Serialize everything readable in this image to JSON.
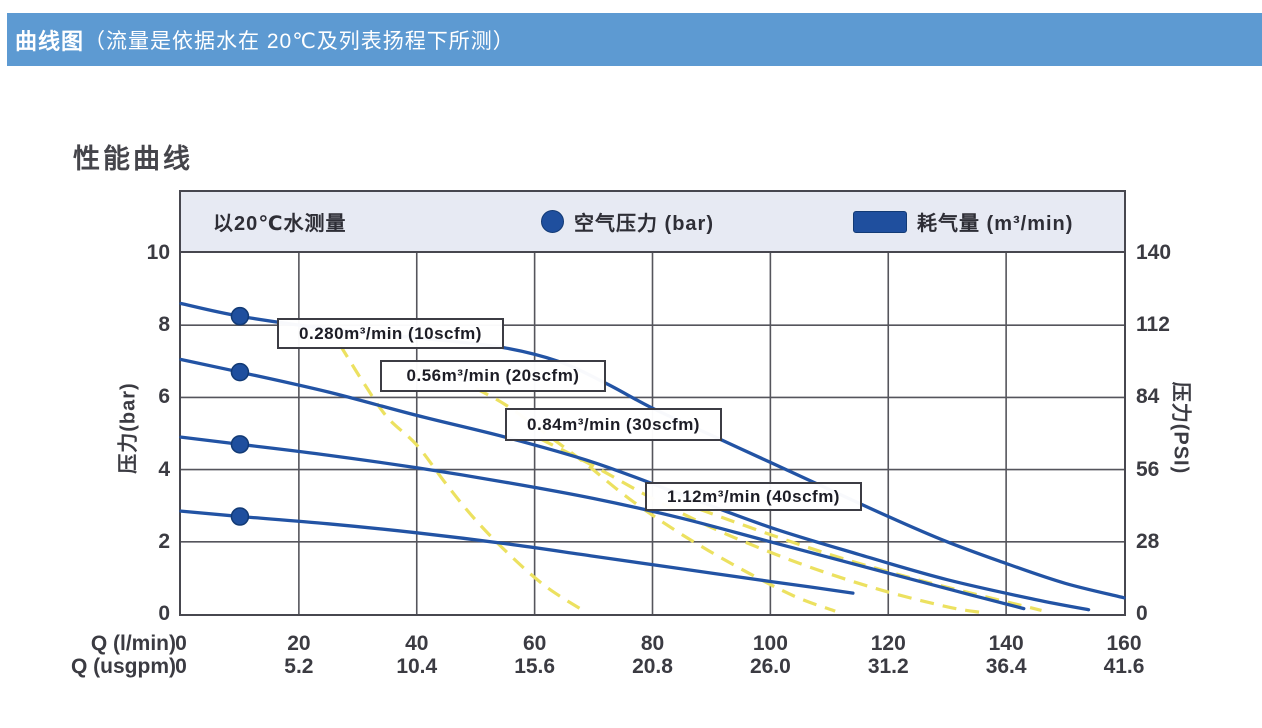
{
  "header": {
    "title_bold": "曲线图",
    "title_rest": "（流量是依据水在 20℃及列表扬程下所测）"
  },
  "section_title": "性能曲线",
  "colors": {
    "header_bar": "#5d9ad2",
    "legend_bg": "#e7eaf3",
    "frame": "#47474f",
    "grid": "#55555c",
    "curve_blue": "#2253a4",
    "dot_blue": "#1f4f9e",
    "dot_border": "#123a75",
    "air_yellow": "#ece160",
    "tick_text": "#3b3b42"
  },
  "chart_data": {
    "type": "line",
    "title": "性能曲线",
    "legend": {
      "note": "以20℃水测量",
      "pressure_label": "空气压力 (bar)",
      "consumption_label": "耗气量 (m³/min)"
    },
    "x_axis": {
      "label_lmin": "Q (l/min)",
      "label_usgpm": "Q (usgpm)",
      "range_lmin": [
        0,
        160
      ],
      "ticks_lmin": [
        "0",
        "20",
        "40",
        "60",
        "80",
        "100",
        "120",
        "140",
        "160"
      ],
      "ticks_usgpm": [
        "0",
        "5.2",
        "10.4",
        "15.6",
        "20.8",
        "26.0",
        "31.2",
        "36.4",
        "41.6"
      ],
      "grid": true
    },
    "y_axis_left": {
      "label": "压力(bar)",
      "range": [
        0,
        10
      ],
      "ticks": [
        "10",
        "8",
        "6",
        "4",
        "2",
        "0"
      ],
      "grid": true
    },
    "y_axis_right": {
      "label": "压力(PSI)",
      "range": [
        0,
        140
      ],
      "ticks": [
        "140",
        "112",
        "84",
        "56",
        "28",
        "0"
      ]
    },
    "series": [
      {
        "name": "performance-10scfm",
        "air_consumption": "0.280 m³/min (10 scfm)",
        "points": [
          [
            0,
            8.6
          ],
          [
            10,
            8.25
          ],
          [
            25,
            7.9
          ],
          [
            40,
            7.65
          ],
          [
            54,
            7.4
          ],
          [
            64,
            7.0
          ],
          [
            72,
            6.4
          ],
          [
            80,
            5.7
          ],
          [
            90,
            4.95
          ],
          [
            100,
            4.2
          ],
          [
            110,
            3.45
          ],
          [
            120,
            2.7
          ],
          [
            130,
            2.0
          ],
          [
            140,
            1.4
          ],
          [
            150,
            0.85
          ],
          [
            160,
            0.45
          ]
        ]
      },
      {
        "name": "performance-20scfm",
        "air_consumption": "0.56 m³/min (20 scfm)",
        "points": [
          [
            0,
            7.05
          ],
          [
            10,
            6.7
          ],
          [
            25,
            6.15
          ],
          [
            40,
            5.5
          ],
          [
            55,
            4.9
          ],
          [
            70,
            4.2
          ],
          [
            85,
            3.3
          ],
          [
            100,
            2.4
          ],
          [
            115,
            1.65
          ],
          [
            130,
            0.95
          ],
          [
            145,
            0.4
          ],
          [
            154,
            0.12
          ]
        ]
      },
      {
        "name": "performance-30scfm",
        "air_consumption": "0.84 m³/min (30 scfm)",
        "points": [
          [
            0,
            4.9
          ],
          [
            10,
            4.7
          ],
          [
            25,
            4.4
          ],
          [
            40,
            4.05
          ],
          [
            55,
            3.65
          ],
          [
            70,
            3.2
          ],
          [
            85,
            2.65
          ],
          [
            100,
            2.0
          ],
          [
            115,
            1.35
          ],
          [
            130,
            0.7
          ],
          [
            143,
            0.15
          ]
        ]
      },
      {
        "name": "performance-40scfm",
        "air_consumption": "1.12 m³/min (40 scfm)",
        "points": [
          [
            0,
            2.85
          ],
          [
            10,
            2.7
          ],
          [
            25,
            2.5
          ],
          [
            40,
            2.25
          ],
          [
            55,
            1.95
          ],
          [
            70,
            1.6
          ],
          [
            85,
            1.25
          ],
          [
            100,
            0.9
          ],
          [
            108,
            0.72
          ],
          [
            114,
            0.58
          ]
        ]
      }
    ],
    "air_consumption_curves": [
      {
        "name": "air-0.28",
        "points": [
          [
            27,
            7.45
          ],
          [
            31,
            6.4
          ],
          [
            35,
            5.45
          ],
          [
            40,
            4.68
          ],
          [
            45,
            3.6
          ],
          [
            50,
            2.6
          ],
          [
            56,
            1.6
          ],
          [
            62,
            0.75
          ],
          [
            68,
            0.12
          ]
        ]
      },
      {
        "name": "air-0.56",
        "points": [
          [
            50,
            6.25
          ],
          [
            55,
            5.8
          ],
          [
            61,
            5.1
          ],
          [
            68,
            4.25
          ],
          [
            76,
            3.2
          ],
          [
            85,
            2.2
          ],
          [
            95,
            1.25
          ],
          [
            104,
            0.5
          ],
          [
            111,
            0.08
          ]
        ]
      },
      {
        "name": "air-0.84",
        "points": [
          [
            61,
            4.85
          ],
          [
            70,
            4.1
          ],
          [
            80,
            3.2
          ],
          [
            92,
            2.25
          ],
          [
            105,
            1.4
          ],
          [
            118,
            0.7
          ],
          [
            130,
            0.2
          ],
          [
            136,
            0.04
          ]
        ]
      },
      {
        "name": "air-1.12",
        "points": [
          [
            88,
            2.9
          ],
          [
            100,
            2.2
          ],
          [
            112,
            1.55
          ],
          [
            125,
            0.95
          ],
          [
            136,
            0.5
          ],
          [
            146,
            0.1
          ]
        ]
      }
    ],
    "pressure_dots": [
      [
        10,
        8.25
      ],
      [
        10,
        6.7
      ],
      [
        10,
        4.7
      ],
      [
        10,
        2.7
      ]
    ],
    "curve_labels": [
      {
        "text": "0.280m³/min (10scfm)"
      },
      {
        "text": "0.56m³/min (20scfm)"
      },
      {
        "text": "0.84m³/min (30scfm)"
      },
      {
        "text": "1.12m³/min (40scfm)"
      }
    ]
  }
}
